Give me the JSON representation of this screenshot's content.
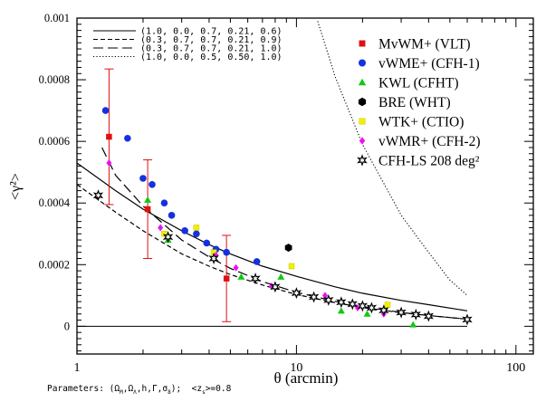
{
  "chart_data": {
    "type": "scatter",
    "xscale": "log",
    "xlim": [
      1,
      120
    ],
    "ylim": [
      -9e-05,
      0.001
    ],
    "xlabel": "θ (arcmin)",
    "ylabel": "<γ²>",
    "x_ticks": [
      1,
      10,
      100
    ],
    "x_tick_labels": [
      "1",
      "10",
      "100"
    ],
    "y_ticks": [
      0,
      0.0002,
      0.0004,
      0.0006,
      0.0008,
      0.001
    ],
    "y_tick_labels": [
      "0",
      "0.0002",
      "0.0004",
      "0.0006",
      "0.0008",
      "0.001"
    ],
    "model_legend": [
      {
        "label": "(1.0, 0.0, 0.7, 0.21, 0.6)",
        "style": "solid"
      },
      {
        "label": "(0.3, 0.7, 0.7, 0.21, 0.9)",
        "style": "short-dash"
      },
      {
        "label": "(0.3, 0.7, 0.7, 0.21, 1.0)",
        "style": "long-dash"
      },
      {
        "label": "(1.0, 0.0, 0.5, 0.50, 1.0)",
        "style": "dotted"
      }
    ],
    "models": [
      {
        "name": "(1.0, 0.0, 0.7, 0.21, 0.6)",
        "style": "solid",
        "x": [
          1,
          1.5,
          2,
          3,
          4,
          5,
          7,
          10,
          15,
          20,
          30,
          40,
          60
        ],
        "y": [
          0.00053,
          0.00044,
          0.00038,
          0.00031,
          0.000265,
          0.000235,
          0.000195,
          0.000162,
          0.000128,
          0.000107,
          8.4e-05,
          7e-05,
          5e-05
        ]
      },
      {
        "name": "(0.3, 0.7, 0.7, 0.21, 0.9)",
        "style": "short-dash",
        "x": [
          1,
          1.5,
          2,
          3,
          4,
          5,
          7,
          10,
          15,
          20,
          30,
          40,
          60
        ],
        "y": [
          0.00046,
          0.00037,
          0.00031,
          0.000235,
          0.000195,
          0.000168,
          0.000134,
          0.000103,
          7.7e-05,
          6.1e-05,
          4.4e-05,
          3.5e-05,
          2.3e-05
        ]
      },
      {
        "name": "(0.3, 0.7, 0.7, 0.21, 1.0)",
        "style": "long-dash",
        "x": [
          1.3,
          1.5,
          2,
          3,
          4,
          5,
          7,
          10,
          15,
          20,
          30,
          40,
          60
        ],
        "y": [
          0.00058,
          0.00049,
          0.00039,
          0.00028,
          0.000225,
          0.000188,
          0.000145,
          0.00011,
          8.1e-05,
          6.4e-05,
          4.5e-05,
          3.5e-05,
          2.3e-05
        ]
      },
      {
        "name": "(1.0, 0.0, 0.5, 0.50, 1.0)",
        "style": "dotted",
        "x": [
          12.5,
          15,
          20,
          30,
          40,
          50,
          60
        ],
        "y": [
          0.00099,
          0.00081,
          0.00059,
          0.00036,
          0.00024,
          0.00015,
          0.0001
        ]
      }
    ],
    "series": [
      {
        "name": "MvWM+ (VLT)",
        "color": "#e01010",
        "marker": "square",
        "x": [
          1.4,
          2.1,
          4.8
        ],
        "y": [
          0.000615,
          0.00038,
          0.000155
        ],
        "err": [
          0.00022,
          0.00016,
          0.00014
        ]
      },
      {
        "name": "vWME+ (CFH-1)",
        "color": "#1530e0",
        "marker": "circle",
        "x": [
          1.35,
          1.7,
          2.0,
          2.2,
          2.5,
          2.7,
          3.1,
          3.5,
          3.9,
          4.3,
          4.8,
          6.6
        ],
        "y": [
          0.0007,
          0.00061,
          0.00048,
          0.00046,
          0.0004,
          0.00036,
          0.00031,
          0.0003,
          0.00027,
          0.00025,
          0.00024,
          0.00021
        ]
      },
      {
        "name": "KWL (CFHT)",
        "color": "#10c810",
        "marker": "triangle",
        "x": [
          2.1,
          2.6,
          5.6,
          8.5,
          16,
          21,
          34
        ],
        "y": [
          0.00041,
          0.00028,
          0.00016,
          0.00016,
          5e-05,
          4e-05,
          5e-06
        ]
      },
      {
        "name": "BRE (WHT)",
        "color": "#000000",
        "marker": "hexagon",
        "x": [
          9.2
        ],
        "y": [
          0.000255
        ]
      },
      {
        "name": "WTK+ (CTIO)",
        "color": "#f0f000",
        "marker": "square",
        "x": [
          2.5,
          3.5,
          4.2,
          9.5,
          26
        ],
        "y": [
          0.0003,
          0.00032,
          0.00024,
          0.000195,
          7e-05
        ]
      },
      {
        "name": "vWMR+ (CFH-2)",
        "color": "#ee10ee",
        "marker": "diamond",
        "x": [
          1.4,
          2.4,
          4.3,
          5.3,
          7.7,
          13.5,
          19,
          25
        ],
        "y": [
          0.00053,
          0.00032,
          0.00023,
          0.00019,
          0.00013,
          0.0001,
          6e-05,
          4e-05
        ]
      },
      {
        "name": "CFH-LS 208 deg²",
        "color": "#000000",
        "marker": "star",
        "x": [
          1.25,
          2.6,
          4.2,
          6.5,
          8,
          10,
          12,
          14,
          16,
          18,
          20,
          22,
          25,
          30,
          35,
          40,
          60
        ],
        "y": [
          0.000425,
          0.00029,
          0.00022,
          0.000155,
          0.000128,
          0.000108,
          9.5e-05,
          8.5e-05,
          7.8e-05,
          7.2e-05,
          6.6e-05,
          6e-05,
          5.2e-05,
          4.5e-05,
          3.8e-05,
          3.3e-05,
          2.2e-05
        ]
      }
    ]
  },
  "footer": {
    "prefix": "Parameters: ",
    "params": "(Ω",
    "suffix": "); <z",
    "tail": ">=0.8"
  }
}
